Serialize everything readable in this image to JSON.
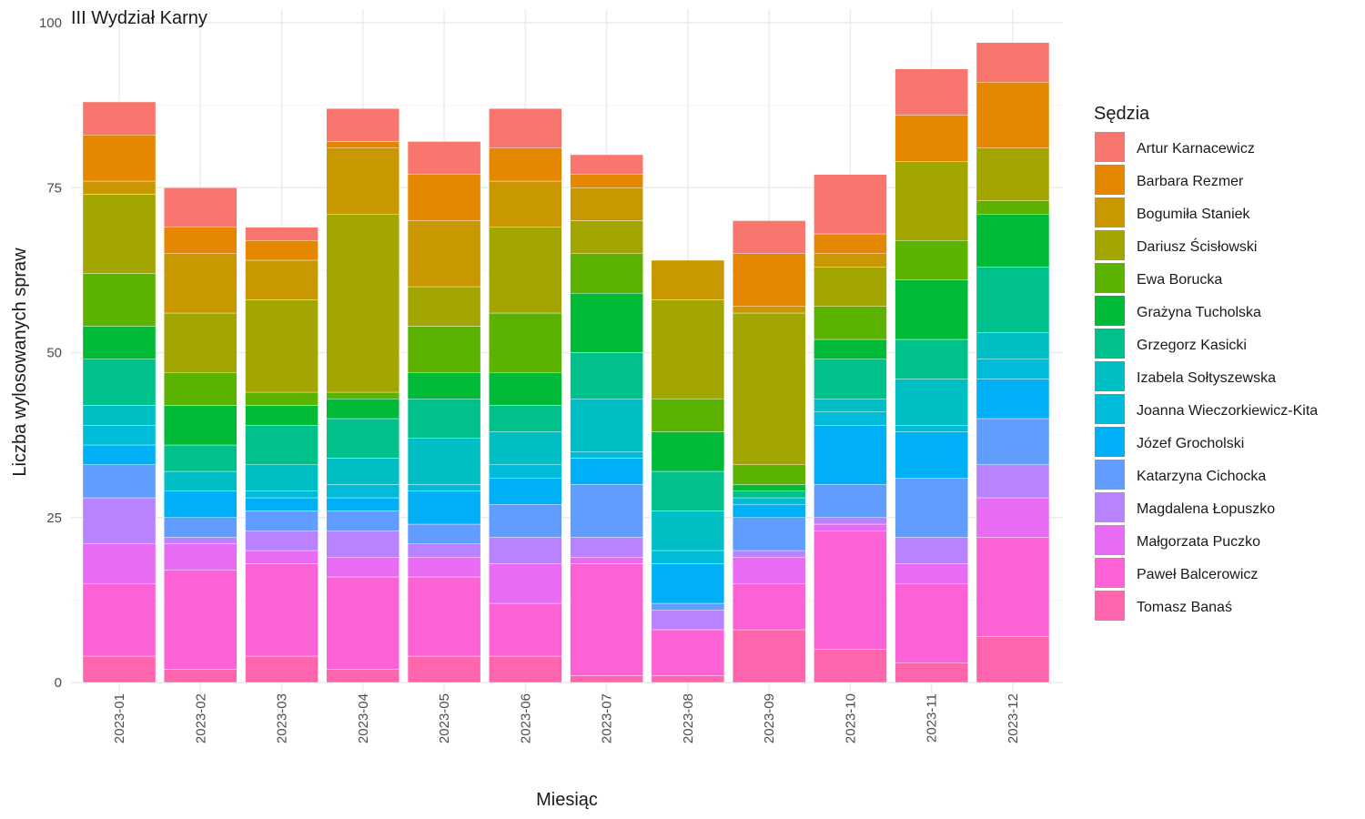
{
  "chart_data": {
    "type": "bar",
    "stacked": true,
    "title": "III Wydział Karny",
    "xlabel": "Miesiąc",
    "ylabel": "Liczba wylosowanych spraw",
    "ylim": [
      0,
      100
    ],
    "yticks": [
      0,
      25,
      50,
      75,
      100
    ],
    "grid": true,
    "legend_title": "Sędzia",
    "legend_position": "right",
    "categories": [
      "2023-01",
      "2023-02",
      "2023-03",
      "2023-04",
      "2023-05",
      "2023-06",
      "2023-07",
      "2023-08",
      "2023-09",
      "2023-10",
      "2023-11",
      "2023-12"
    ],
    "series": [
      {
        "name": "Tomasz Banaś",
        "color": "#FF65AC",
        "values": [
          4,
          2,
          4,
          2,
          4,
          4,
          1,
          1,
          8,
          5,
          3,
          7
        ]
      },
      {
        "name": "Paweł Balcerowicz",
        "color": "#FC61D5",
        "values": [
          11,
          15,
          14,
          14,
          12,
          8,
          17,
          7,
          7,
          18,
          12,
          15
        ]
      },
      {
        "name": "Małgorzata Puczko",
        "color": "#E76BF3",
        "values": [
          6,
          4,
          2,
          3,
          3,
          6,
          1,
          0,
          4,
          1,
          3,
          6
        ]
      },
      {
        "name": "Magdalena Łopuszko",
        "color": "#B983FF",
        "values": [
          7,
          1,
          3,
          4,
          2,
          4,
          3,
          3,
          1,
          1,
          4,
          5
        ]
      },
      {
        "name": "Katarzyna Cichocka",
        "color": "#619CFF",
        "values": [
          5,
          3,
          3,
          3,
          3,
          5,
          8,
          1,
          5,
          5,
          9,
          7
        ]
      },
      {
        "name": "Józef Grocholski",
        "color": "#00B0F6",
        "values": [
          3,
          4,
          2,
          2,
          5,
          4,
          4,
          6,
          2,
          9,
          7,
          6
        ]
      },
      {
        "name": "Joanna Wieczorkiewicz-Kita",
        "color": "#00BCD8",
        "values": [
          3,
          0,
          1,
          2,
          1,
          2,
          1,
          2,
          1,
          2,
          1,
          3
        ]
      },
      {
        "name": "Izabela Sołtyszewska",
        "color": "#00BFC4",
        "values": [
          3,
          3,
          4,
          4,
          7,
          5,
          8,
          6,
          0,
          2,
          7,
          4
        ]
      },
      {
        "name": "Grzegorz Kasicki",
        "color": "#00C08B",
        "values": [
          7,
          4,
          6,
          6,
          6,
          4,
          7,
          6,
          1,
          6,
          6,
          10
        ]
      },
      {
        "name": "Grażyna Tucholska",
        "color": "#00BA38",
        "values": [
          5,
          6,
          3,
          3,
          4,
          5,
          9,
          6,
          1,
          3,
          9,
          8
        ]
      },
      {
        "name": "Ewa Borucka",
        "color": "#5BB300",
        "values": [
          8,
          5,
          2,
          1,
          7,
          9,
          6,
          5,
          3,
          5,
          6,
          2
        ]
      },
      {
        "name": "Dariusz Ścisłowski",
        "color": "#A3A500",
        "values": [
          12,
          9,
          14,
          27,
          6,
          13,
          5,
          15,
          23,
          6,
          12,
          8
        ]
      },
      {
        "name": "Bogumiła Staniek",
        "color": "#C99800",
        "values": [
          2,
          9,
          6,
          10,
          10,
          7,
          5,
          6,
          1,
          2,
          0,
          0
        ]
      },
      {
        "name": "Barbara Rezmer",
        "color": "#E58700",
        "values": [
          7,
          4,
          3,
          1,
          7,
          5,
          2,
          0,
          8,
          3,
          7,
          10
        ]
      },
      {
        "name": "Artur Karnacewicz",
        "color": "#F8766D",
        "values": [
          5,
          6,
          2,
          5,
          5,
          6,
          3,
          0,
          5,
          9,
          7,
          6
        ]
      }
    ]
  }
}
